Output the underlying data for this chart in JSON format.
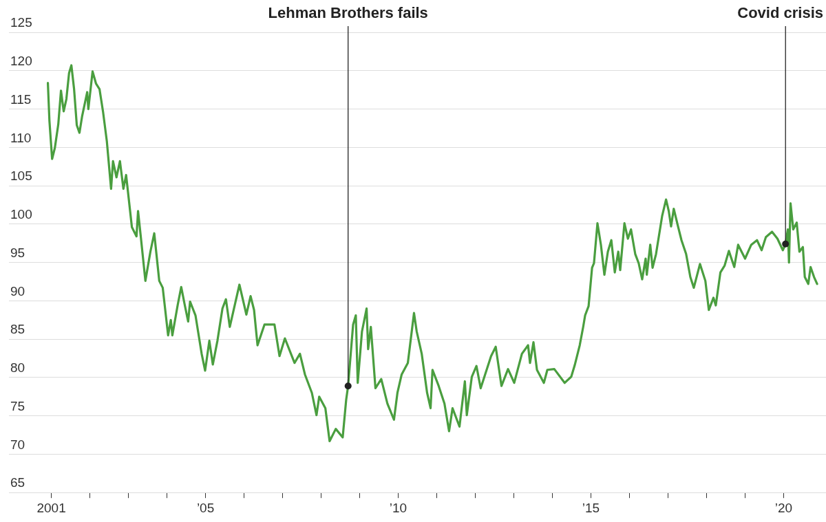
{
  "chart_data": {
    "type": "line",
    "x": [
      2000.91,
      2000.95,
      2001.02,
      2001.09,
      2001.18,
      2001.25,
      2001.32,
      2001.39,
      2001.46,
      2001.52,
      2001.59,
      2001.66,
      2001.73,
      2001.8,
      2001.93,
      2001.96,
      2002.07,
      2002.16,
      2002.25,
      2002.34,
      2002.44,
      2002.55,
      2002.6,
      2002.69,
      2002.78,
      2002.87,
      2002.94,
      2003.09,
      2003.21,
      2003.25,
      2003.32,
      2003.44,
      2003.57,
      2003.67,
      2003.8,
      2003.89,
      2004.03,
      2004.1,
      2004.14,
      2004.28,
      2004.37,
      2004.46,
      2004.55,
      2004.6,
      2004.74,
      2004.9,
      2004.99,
      2005.1,
      2005.19,
      2005.31,
      2005.44,
      2005.53,
      2005.63,
      2005.88,
      2006.06,
      2006.17,
      2006.26,
      2006.35,
      2006.53,
      2006.79,
      2006.92,
      2007.06,
      2007.31,
      2007.45,
      2007.58,
      2007.76,
      2007.88,
      2007.95,
      2008.11,
      2008.22,
      2008.38,
      2008.56,
      2008.65,
      2008.7,
      2008.83,
      2008.9,
      2008.95,
      2009.06,
      2009.18,
      2009.22,
      2009.29,
      2009.41,
      2009.56,
      2009.72,
      2009.89,
      2009.98,
      2010.09,
      2010.25,
      2010.41,
      2010.48,
      2010.61,
      2010.75,
      2010.84,
      2010.89,
      2011.05,
      2011.2,
      2011.32,
      2011.41,
      2011.59,
      2011.73,
      2011.78,
      2011.91,
      2012.03,
      2012.14,
      2012.41,
      2012.53,
      2012.68,
      2012.85,
      2013.01,
      2013.21,
      2013.37,
      2013.42,
      2013.51,
      2013.6,
      2013.78,
      2013.87,
      2014.05,
      2014.32,
      2014.49,
      2014.58,
      2014.71,
      2014.8,
      2014.85,
      2014.94,
      2015.03,
      2015.08,
      2015.17,
      2015.26,
      2015.35,
      2015.44,
      2015.53,
      2015.62,
      2015.71,
      2015.76,
      2015.87,
      2015.96,
      2016.04,
      2016.15,
      2016.24,
      2016.33,
      2016.42,
      2016.45,
      2016.54,
      2016.6,
      2016.69,
      2016.85,
      2016.95,
      2017.02,
      2017.08,
      2017.15,
      2017.26,
      2017.35,
      2017.47,
      2017.58,
      2017.67,
      2017.83,
      2017.97,
      2018.06,
      2018.18,
      2018.24,
      2018.36,
      2018.47,
      2018.58,
      2018.72,
      2018.82,
      2019.0,
      2019.16,
      2019.31,
      2019.43,
      2019.54,
      2019.7,
      2019.84,
      2019.98,
      2020.05,
      2020.11,
      2020.14,
      2020.18,
      2020.25,
      2020.34,
      2020.41,
      2020.5,
      2020.55,
      2020.64,
      2020.7,
      2020.79,
      2020.87
    ],
    "series": [
      {
        "color": "#4a9e3f",
        "values": [
          118.4,
          113.5,
          108.5,
          109.9,
          113.0,
          117.4,
          114.7,
          116.3,
          119.7,
          120.7,
          117.6,
          112.9,
          111.9,
          114.1,
          117.2,
          115.0,
          119.9,
          118.3,
          117.6,
          114.7,
          110.8,
          104.6,
          108.2,
          106.1,
          108.2,
          104.6,
          106.4,
          99.6,
          98.4,
          101.7,
          98.4,
          92.6,
          96.4,
          98.8,
          92.6,
          91.7,
          85.5,
          87.5,
          85.5,
          89.5,
          91.8,
          89.5,
          87.3,
          89.9,
          88.1,
          83.1,
          80.9,
          84.8,
          81.7,
          84.8,
          89.0,
          90.2,
          86.6,
          92.1,
          88.2,
          90.6,
          88.8,
          84.2,
          86.9,
          86.9,
          82.8,
          85.1,
          81.9,
          83.1,
          80.4,
          78.0,
          75.1,
          77.5,
          76.0,
          71.7,
          73.3,
          72.2,
          77.1,
          78.9,
          86.9,
          88.1,
          79.3,
          86.0,
          89.0,
          83.7,
          86.6,
          78.6,
          79.8,
          76.6,
          74.5,
          78.0,
          80.4,
          81.9,
          88.4,
          86.0,
          83.1,
          78.0,
          76.0,
          81.0,
          78.9,
          76.6,
          73.0,
          76.0,
          73.6,
          79.5,
          75.1,
          80.1,
          81.5,
          78.6,
          82.8,
          84.0,
          78.9,
          81.1,
          79.3,
          83.1,
          84.2,
          81.9,
          84.6,
          81.0,
          79.3,
          81.0,
          81.1,
          79.3,
          80.1,
          81.6,
          84.2,
          86.6,
          88.1,
          89.3,
          94.3,
          94.9,
          100.1,
          97.3,
          93.4,
          96.4,
          97.9,
          93.7,
          96.4,
          94.0,
          100.1,
          98.1,
          99.3,
          96.1,
          94.9,
          92.8,
          95.5,
          93.4,
          97.3,
          94.3,
          96.1,
          101.1,
          103.2,
          101.7,
          99.7,
          102.0,
          99.7,
          97.9,
          96.1,
          93.1,
          91.7,
          94.8,
          92.6,
          88.8,
          90.4,
          89.4,
          93.7,
          94.6,
          96.5,
          94.4,
          97.3,
          95.5,
          97.3,
          97.9,
          96.6,
          98.3,
          99.0,
          98.1,
          96.6,
          97.4,
          99.3,
          95.0,
          102.7,
          99.3,
          100.2,
          96.4,
          97.0,
          93.1,
          92.2,
          94.4,
          93.1,
          92.2
        ]
      }
    ],
    "xlim": [
      1999.9,
      2021.1
    ],
    "xticks": [
      {
        "value": 2001,
        "label": "2001"
      },
      {
        "value": 2002,
        "label": null
      },
      {
        "value": 2003,
        "label": null
      },
      {
        "value": 2004,
        "label": null
      },
      {
        "value": 2005,
        "label": "’05"
      },
      {
        "value": 2006,
        "label": null
      },
      {
        "value": 2007,
        "label": null
      },
      {
        "value": 2008,
        "label": null
      },
      {
        "value": 2009,
        "label": null
      },
      {
        "value": 2010,
        "label": "’10"
      },
      {
        "value": 2011,
        "label": null
      },
      {
        "value": 2012,
        "label": null
      },
      {
        "value": 2013,
        "label": null
      },
      {
        "value": 2014,
        "label": null
      },
      {
        "value": 2015,
        "label": "’15"
      },
      {
        "value": 2016,
        "label": null
      },
      {
        "value": 2017,
        "label": null
      },
      {
        "value": 2018,
        "label": null
      },
      {
        "value": 2019,
        "label": null
      },
      {
        "value": 2020,
        "label": "’20"
      }
    ],
    "ylim": [
      65,
      125
    ],
    "yticks": [
      65,
      70,
      75,
      80,
      85,
      90,
      95,
      100,
      105,
      110,
      115,
      120,
      125
    ],
    "grid": "y",
    "legend": false,
    "marker": "none",
    "line_style": "solid",
    "annotations": [
      {
        "text": "Lehman Brothers fails",
        "x": 2008.7,
        "y": 78.9
      },
      {
        "text": "Covid crisis",
        "x": 2020.05,
        "y": 97.4
      }
    ]
  }
}
